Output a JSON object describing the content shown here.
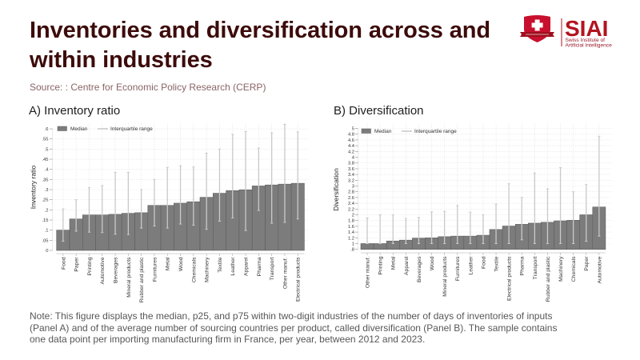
{
  "header": {
    "title_lines": [
      "Inventories and diversification across and",
      "within industries"
    ],
    "source": "Source: : Centre for Economic Policy Research (CERP)"
  },
  "logo": {
    "icon": "shield-swiss-cross-icon",
    "name": "SIAI",
    "subtitle_lines": [
      "Swiss Institute of",
      "Artificial Intelligence"
    ],
    "brand_color": "#c8102e"
  },
  "panels": [
    {
      "title": "A) Inventory ratio"
    },
    {
      "title": "B) Diversification"
    }
  ],
  "note_lines": [
    "Note: This figure displays the median, p25, and p75 within two-digit industries of the number of days of inventories of inputs",
    "(Panel A) and of the average number of sourcing countries per product, called diversification (Panel B). The sample contains",
    "one data point per importing manufacturing firm in France, per year, between 2012 and 2023."
  ],
  "colors": {
    "title": "#3d0b0b",
    "bar_fill": "#7c7c7c",
    "bar_edge": "#5e5e5e",
    "whisker": "#c9c9c9",
    "grid": "#d9d9d9"
  },
  "chart_data": [
    {
      "type": "bar",
      "title": "A) Inventory ratio",
      "xlabel": "",
      "ylabel": "Inventory ratio",
      "ylim": [
        0,
        0.6
      ],
      "yticks": [
        0,
        0.05,
        0.1,
        0.15,
        0.2,
        0.25,
        0.3,
        0.35,
        0.4,
        0.45,
        0.5,
        0.55,
        0.6
      ],
      "ytick_labels": [
        "0",
        ".05",
        ".1",
        ".15",
        ".2",
        ".25",
        ".3",
        ".35",
        ".4",
        ".45",
        ".5",
        ".55",
        ".6"
      ],
      "grid": true,
      "legend": [
        "Median",
        "Interquartile range"
      ],
      "legend_position": "top-left",
      "categories": [
        "Food",
        "Paper",
        "Printing",
        "Automotive",
        "Beverages",
        "Mineral products",
        "Rubber and plastic",
        "Furnitures",
        "Metal",
        "Wood",
        "Chemicals",
        "Machinery",
        "Textile",
        "Leather",
        "Apparel",
        "Pharma",
        "Transport",
        "Other manuf.",
        "Electrical products"
      ],
      "series": [
        {
          "name": "Median",
          "values": [
            0.1,
            0.155,
            0.175,
            0.175,
            0.178,
            0.183,
            0.186,
            0.222,
            0.222,
            0.233,
            0.24,
            0.262,
            0.282,
            0.295,
            0.299,
            0.318,
            0.323,
            0.327,
            0.331
          ]
        },
        {
          "name": "Interquartile range",
          "low": [
            0.045,
            0.095,
            0.09,
            0.088,
            0.08,
            0.078,
            0.11,
            0.12,
            0.11,
            0.13,
            0.124,
            0.104,
            0.144,
            0.16,
            0.098,
            0.197,
            0.134,
            0.138,
            0.155
          ],
          "high": [
            0.205,
            0.25,
            0.31,
            0.32,
            0.385,
            0.385,
            0.3,
            0.35,
            0.41,
            0.418,
            0.412,
            0.48,
            0.5,
            0.573,
            0.587,
            0.505,
            0.58,
            0.622,
            0.585
          ]
        }
      ]
    },
    {
      "type": "bar",
      "title": "B) Diversification",
      "xlabel": "",
      "ylabel": "Diversification",
      "ylim": [
        0.8,
        5
      ],
      "yticks": [
        0.8,
        1,
        1.2,
        1.4,
        1.6,
        1.8,
        2,
        2.2,
        2.4,
        2.6,
        2.8,
        3,
        3.2,
        3.4,
        3.6,
        3.8,
        4,
        4.2,
        4.4,
        4.6,
        4.8,
        5
      ],
      "ytick_labels": [
        ".8",
        "1",
        "1.2",
        "1.4",
        "1.6",
        "1.8",
        "2",
        "2.2",
        "2.4",
        "2.6",
        "2.8",
        "3",
        "3.2",
        "3.4",
        "3.6",
        "3.8",
        "4",
        "4.2",
        "4.4",
        "4.6",
        "4.8",
        "5"
      ],
      "grid": true,
      "legend": [
        "Median",
        "Interquartile range"
      ],
      "legend_position": "top-left",
      "categories": [
        "Other manuf.",
        "Printing",
        "Metal",
        "Apparel",
        "Beverages",
        "Wood",
        "Mineral products",
        "Furnitures",
        "Leather",
        "Food",
        "Textile",
        "Electrical products",
        "Pharma",
        "Transport",
        "Rubber and plastic",
        "Machinery",
        "Chemicals",
        "Paper",
        "Automotive"
      ],
      "series": [
        {
          "name": "Median",
          "values": [
            1.0,
            1.0,
            1.09,
            1.12,
            1.19,
            1.2,
            1.24,
            1.26,
            1.26,
            1.29,
            1.49,
            1.61,
            1.67,
            1.71,
            1.74,
            1.79,
            1.81,
            2.0,
            2.27
          ]
        },
        {
          "name": "Interquartile range",
          "low": [
            1.0,
            1.0,
            1.0,
            1.0,
            1.0,
            1.0,
            1.0,
            1.0,
            1.0,
            1.0,
            1.0,
            1.0,
            1.13,
            1.0,
            1.0,
            1.0,
            1.0,
            1.08,
            1.26
          ],
          "high": [
            1.89,
            2.0,
            2.0,
            1.87,
            1.91,
            2.1,
            2.12,
            2.32,
            2.09,
            2.0,
            2.37,
            3.08,
            2.6,
            3.45,
            2.9,
            3.64,
            2.8,
            3.05,
            4.73
          ]
        }
      ]
    }
  ]
}
